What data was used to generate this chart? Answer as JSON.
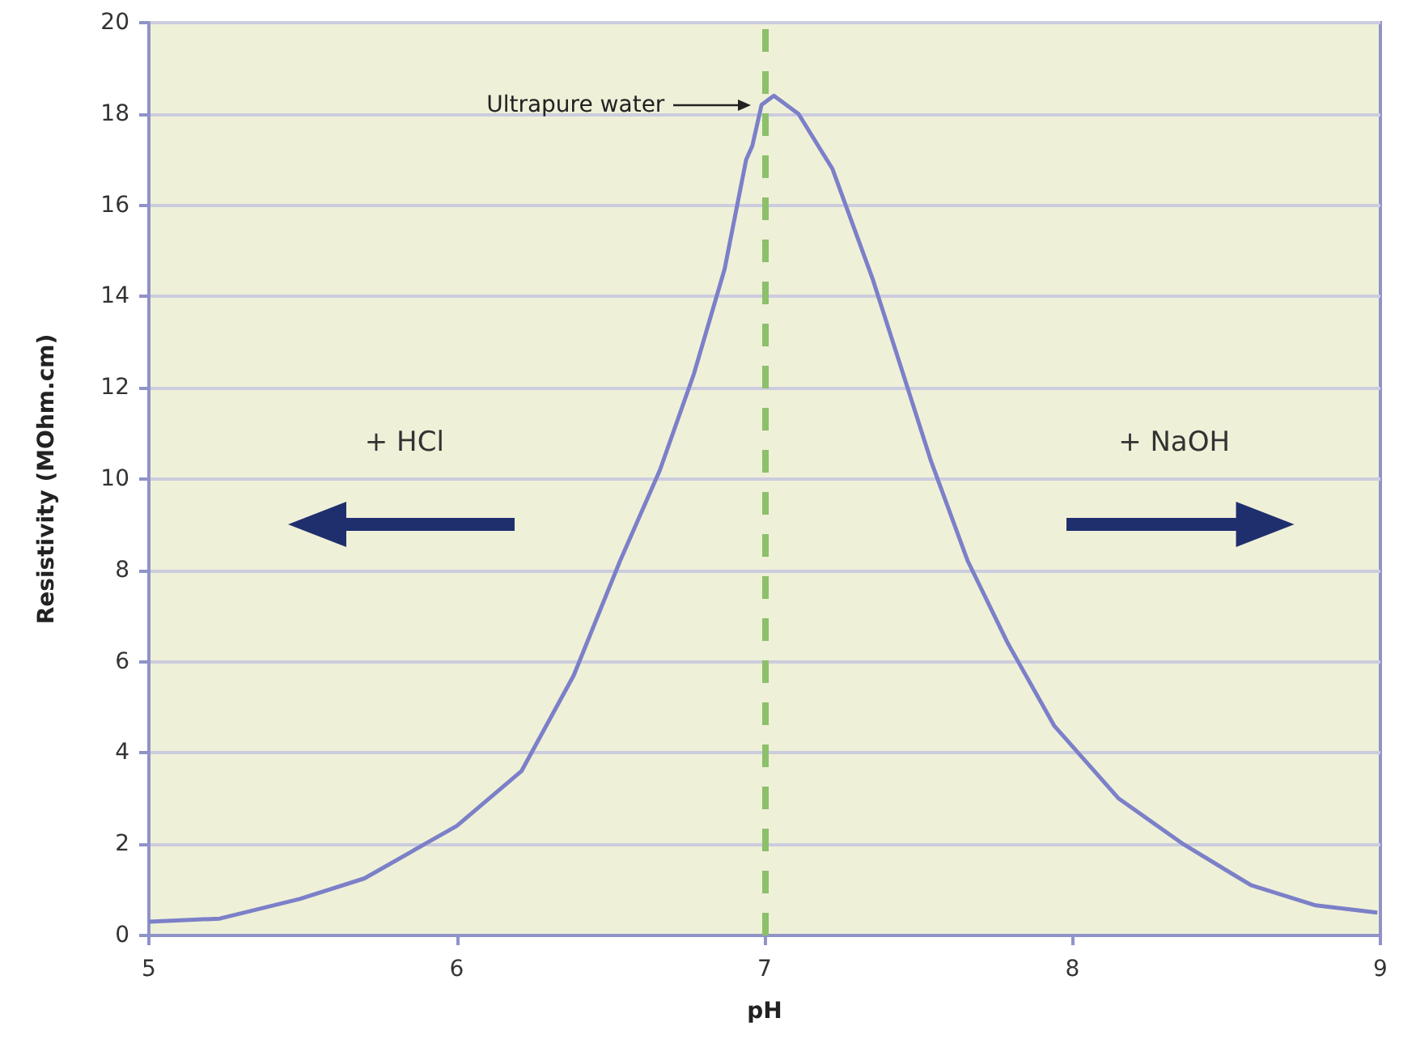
{
  "chart_data": {
    "type": "line",
    "xlabel": "pH",
    "ylabel": "Resistivity (MOhm.cm)",
    "xlim": [
      5,
      9
    ],
    "xticks": [
      5,
      6,
      7,
      8,
      9
    ],
    "ylim": [
      0,
      20
    ],
    "yticks": [
      0,
      2,
      4,
      6,
      8,
      10,
      12,
      14,
      16,
      18,
      20
    ],
    "grid": "y",
    "marker": "none",
    "line_style": "solid",
    "series": [
      {
        "color": "#7b80c8",
        "x": [
          5,
          5.23,
          5.49,
          5.7,
          6,
          6.21,
          6.38,
          6.53,
          6.66,
          6.77,
          6.87,
          6.94,
          6.96,
          6.99,
          7.03,
          7.11,
          7.22,
          7.35,
          7.45,
          7.54,
          7.66,
          7.79,
          7.94,
          8.15,
          8.36,
          8.58,
          8.79,
          8.99
        ],
        "values": [
          0.3,
          0.37,
          0.8,
          1.25,
          2.4,
          3.6,
          5.7,
          8.2,
          10.2,
          12.3,
          14.6,
          17.0,
          17.3,
          18.2,
          18.4,
          18.0,
          16.8,
          14.4,
          12.3,
          10.4,
          8.2,
          6.4,
          4.6,
          3.0,
          2.0,
          1.1,
          0.66,
          0.5
        ]
      }
    ],
    "ref_lines": [
      {
        "axis": "x",
        "value": 7,
        "color": "#8cc06a",
        "line_style": "dashed"
      }
    ],
    "annotations": [
      "Ultrapure water",
      "+ HCl",
      "+ NaOH"
    ]
  }
}
